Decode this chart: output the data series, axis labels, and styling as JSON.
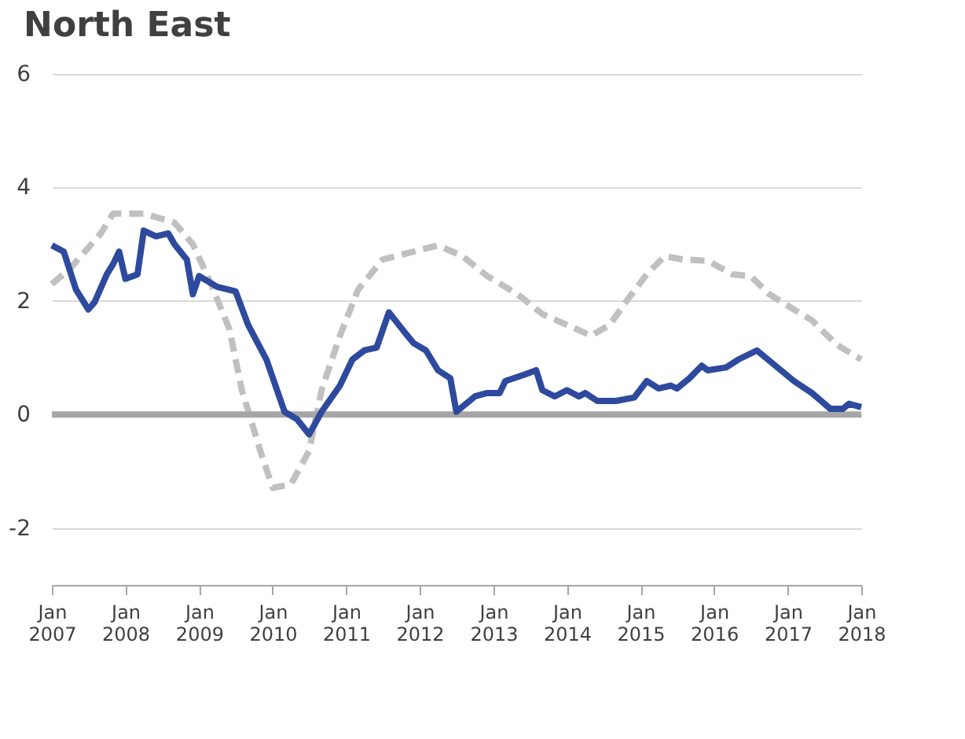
{
  "chart_data": {
    "type": "line",
    "title": "North East",
    "xlim": [
      "2007-01",
      "2018-01"
    ],
    "xticks": [
      {
        "value": "2007-01",
        "label": "Jan 2007"
      },
      {
        "value": "2008-01",
        "label": "Jan 2008"
      },
      {
        "value": "2009-01",
        "label": "Jan 2009"
      },
      {
        "value": "2010-01",
        "label": "Jan 2010"
      },
      {
        "value": "2011-01",
        "label": "Jan 2011"
      },
      {
        "value": "2012-01",
        "label": "Jan 2012"
      },
      {
        "value": "2013-01",
        "label": "Jan 2013"
      },
      {
        "value": "2014-01",
        "label": "Jan 2014"
      },
      {
        "value": "2015-01",
        "label": "Jan 2015"
      },
      {
        "value": "2016-01",
        "label": "Jan 2016"
      },
      {
        "value": "2017-01",
        "label": "Jan 2017"
      },
      {
        "value": "2018-01",
        "label": "Jan 2018"
      }
    ],
    "ylim": [
      -3,
      6
    ],
    "yticks": [
      -2,
      0,
      2,
      4,
      6
    ],
    "grid": "y",
    "marker": "none",
    "ref_lines": [
      {
        "axis": "y",
        "value": 0,
        "color": "#a6a6a6"
      }
    ],
    "series": [
      {
        "color": "#c0c0c0",
        "line_style": "dashed",
        "x": [
          "2007-01",
          "2007-04",
          "2007-09",
          "2007-11",
          "2008-04",
          "2008-09",
          "2008-12",
          "2009-03",
          "2009-06",
          "2009-08",
          "2009-11",
          "2010-01",
          "2010-04",
          "2010-07",
          "2010-09",
          "2010-12",
          "2011-03",
          "2011-07",
          "2011-12",
          "2012-04",
          "2012-08",
          "2012-12",
          "2013-05",
          "2013-09",
          "2014-01",
          "2014-05",
          "2014-08",
          "2014-11",
          "2015-02",
          "2015-05",
          "2015-08",
          "2015-12",
          "2016-04",
          "2016-07",
          "2016-10",
          "2017-02",
          "2017-05",
          "2017-09",
          "2018-01"
        ],
        "values": [
          2.3,
          2.57,
          3.19,
          3.54,
          3.54,
          3.38,
          3.0,
          2.3,
          1.5,
          0.43,
          -0.64,
          -1.29,
          -1.23,
          -0.64,
          0.43,
          1.39,
          2.2,
          2.73,
          2.87,
          2.98,
          2.79,
          2.44,
          2.12,
          1.77,
          1.58,
          1.39,
          1.58,
          2.04,
          2.47,
          2.79,
          2.73,
          2.71,
          2.47,
          2.44,
          2.12,
          1.85,
          1.66,
          1.23,
          0.97
        ]
      },
      {
        "color": "#2e4a9e",
        "line_style": "solid",
        "x": [
          "2007-01",
          "2007-03",
          "2007-05",
          "2007-07",
          "2007-08",
          "2007-10",
          "2007-11",
          "2007-12",
          "2008-01",
          "2008-03",
          "2008-04",
          "2008-06",
          "2008-08",
          "2008-09",
          "2008-11",
          "2008-12",
          "2009-01",
          "2009-04",
          "2009-07",
          "2009-09",
          "2009-12",
          "2010-03",
          "2010-05",
          "2010-07",
          "2010-09",
          "2010-12",
          "2011-02",
          "2011-04",
          "2011-06",
          "2011-08",
          "2011-11",
          "2011-12",
          "2012-02",
          "2012-04",
          "2012-06",
          "2012-07",
          "2012-10",
          "2012-12",
          "2013-02",
          "2013-03",
          "2013-06",
          "2013-08",
          "2013-09",
          "2013-11",
          "2014-01",
          "2014-03",
          "2014-04",
          "2014-06",
          "2014-09",
          "2014-12",
          "2015-02",
          "2015-04",
          "2015-06",
          "2015-07",
          "2015-09",
          "2015-11",
          "2015-12",
          "2016-03",
          "2016-05",
          "2016-08",
          "2016-11",
          "2017-02",
          "2017-05",
          "2017-08",
          "2017-10",
          "2017-11",
          "2018-01"
        ],
        "values": [
          2.98,
          2.87,
          2.2,
          1.85,
          1.98,
          2.47,
          2.65,
          2.87,
          2.39,
          2.47,
          3.24,
          3.14,
          3.19,
          3.0,
          2.73,
          2.12,
          2.44,
          2.25,
          2.17,
          1.58,
          0.97,
          0.05,
          -0.08,
          -0.35,
          0.05,
          0.51,
          0.97,
          1.13,
          1.18,
          1.8,
          1.39,
          1.26,
          1.13,
          0.78,
          0.64,
          0.05,
          0.32,
          0.38,
          0.38,
          0.59,
          0.7,
          0.78,
          0.43,
          0.32,
          0.43,
          0.32,
          0.38,
          0.24,
          0.24,
          0.3,
          0.59,
          0.46,
          0.51,
          0.46,
          0.64,
          0.86,
          0.78,
          0.83,
          0.97,
          1.13,
          0.86,
          0.59,
          0.38,
          0.1,
          0.1,
          0.19,
          0.13
        ]
      }
    ]
  }
}
